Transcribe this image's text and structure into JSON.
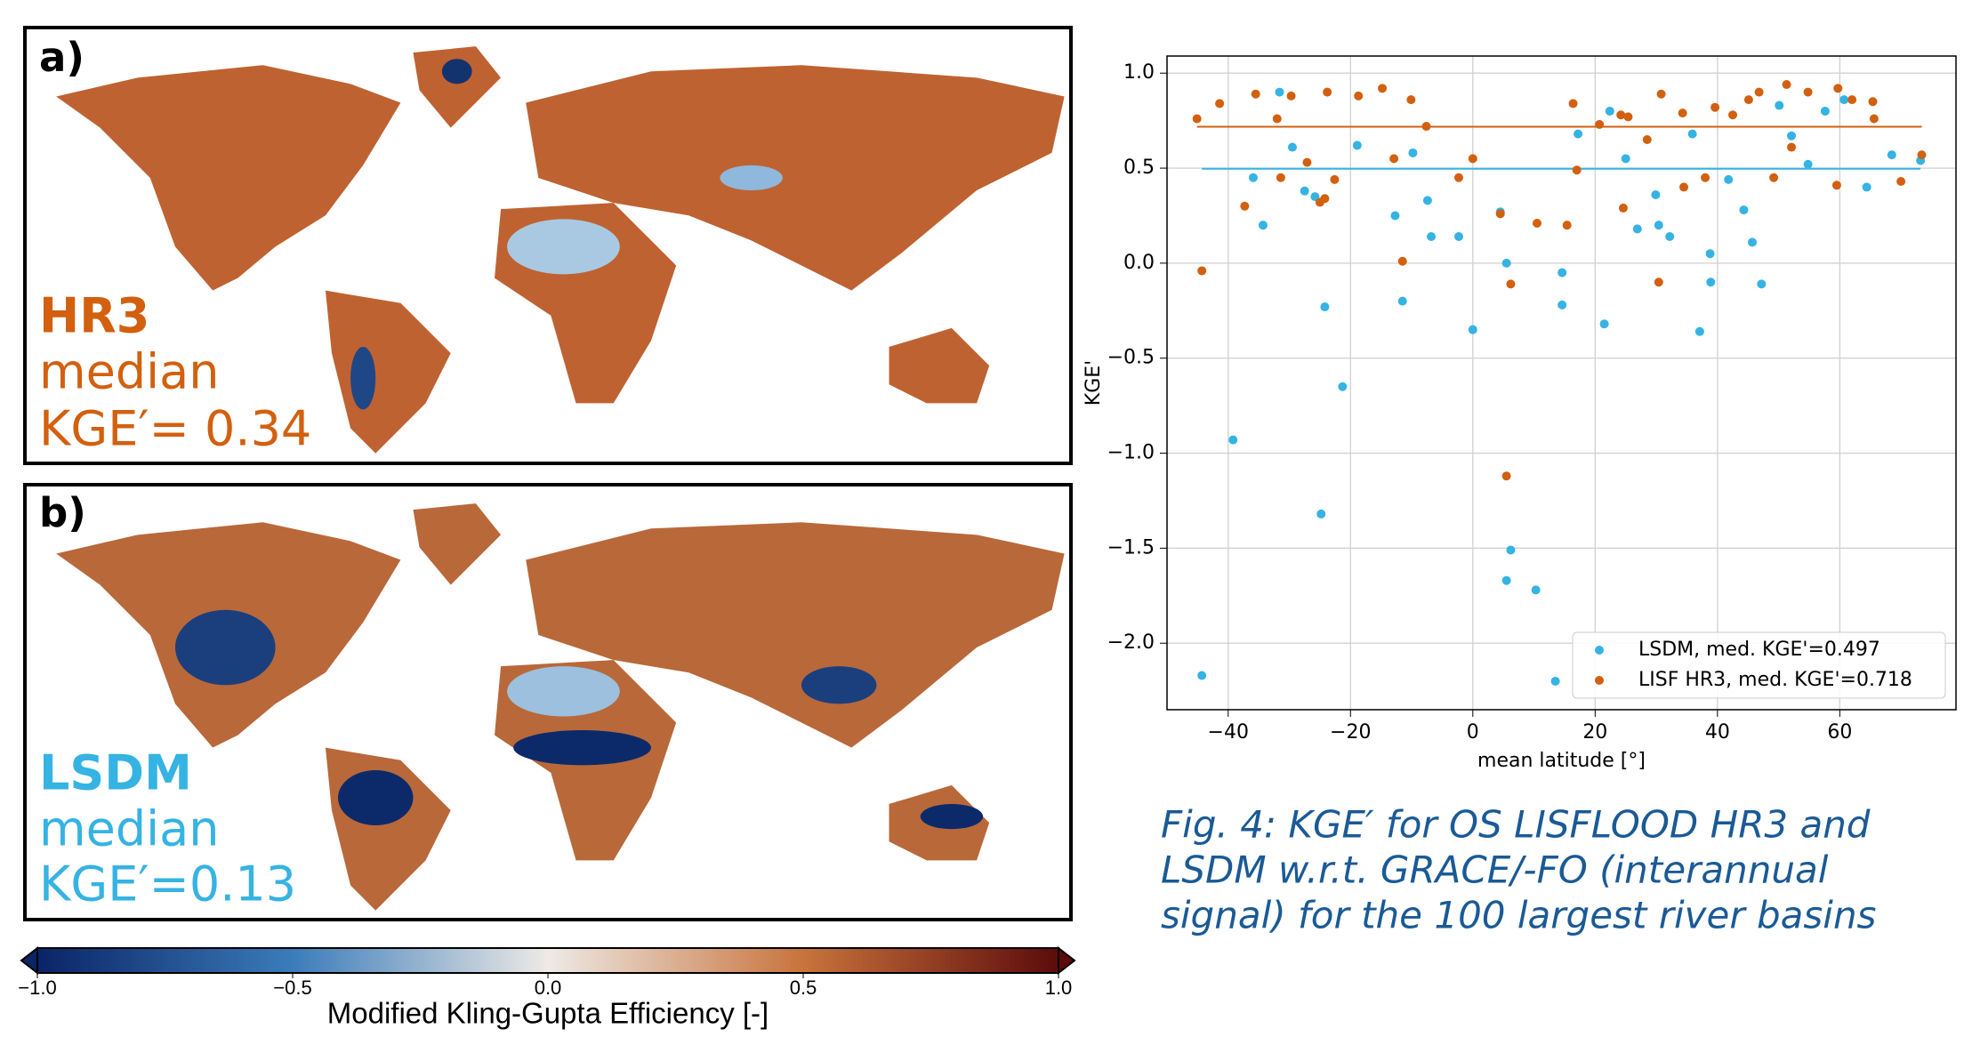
{
  "panels": [
    {
      "label": "a)",
      "model": "HR3",
      "median": "median",
      "kge": "KGE′= 0.34"
    },
    {
      "label": "b)",
      "model": "LSDM",
      "median": "median",
      "kge": "KGE′=0.13"
    }
  ],
  "caption": [
    "Fig. 4: KGE′ for OS LISFLOOD HR3 and",
    "LSDM w.r.t. GRACE/-FO (interannual",
    "signal) for the 100 largest river basins"
  ],
  "chart_data": [
    {
      "type": "scatter",
      "xlabel": "mean latitude [°]",
      "ylabel": "KGE'",
      "grid": true,
      "legend": "lower right",
      "xlim": [
        -50,
        79
      ],
      "ylim": [
        -2.35,
        1.09
      ],
      "xticks": [
        {
          "value": -40,
          "label": "−40"
        },
        {
          "value": -20,
          "label": "−20"
        },
        0,
        20,
        40,
        60
      ],
      "yticks": [
        {
          "value": -2.0,
          "label": "−2.0"
        },
        {
          "value": -1.5,
          "label": "−1.5"
        },
        {
          "value": -1.0,
          "label": "−1.0"
        },
        {
          "value": -0.5,
          "label": "−0.5"
        },
        {
          "value": 0.0,
          "label": "0.0"
        },
        0.5,
        {
          "value": 1.0,
          "label": "1.0"
        }
      ],
      "series": [
        {
          "name": "LSDM, med. KGE'=0.497",
          "color": "#35b3e3",
          "median": 0.497,
          "x": [
            -44.3,
            -39.2,
            -31.6,
            -35.9,
            -34.3,
            -29.5,
            -27.5,
            -25.8,
            -24.2,
            -24.8,
            -21.3,
            -18.9,
            -12.7,
            -11.5,
            -9.8,
            -7.4,
            -6.8,
            -2.3,
            0,
            4.5,
            5.5,
            6.2,
            5.5,
            10.3,
            13.5,
            14.6,
            14.6,
            17.2,
            21.5,
            22.4,
            25.0,
            26.9,
            29.9,
            30.4,
            32.2,
            35.9,
            37.1,
            38.8,
            38.9,
            41.8,
            44.3,
            45.7,
            47.2,
            50.1,
            52.1,
            54.8,
            57.6,
            60.7,
            64.4,
            68.5,
            73.2
          ],
          "values": [
            -2.17,
            -0.93,
            0.9,
            0.45,
            0.2,
            0.61,
            0.38,
            0.35,
            -0.23,
            -1.32,
            -0.65,
            0.62,
            0.25,
            -0.2,
            0.58,
            0.33,
            0.14,
            0.14,
            -0.35,
            0.27,
            0.0,
            -1.51,
            -1.67,
            -1.72,
            -2.2,
            -0.05,
            -0.22,
            0.68,
            -0.32,
            0.8,
            0.55,
            0.18,
            0.36,
            0.2,
            0.14,
            0.68,
            -0.36,
            0.05,
            -0.1,
            0.44,
            0.28,
            0.11,
            -0.11,
            0.83,
            0.67,
            0.52,
            0.8,
            0.86,
            0.4,
            0.57,
            0.54
          ]
        },
        {
          "name": "LISF HR3, med. KGE'=0.718",
          "color": "#d2600f",
          "median": 0.718,
          "x": [
            -44.3,
            -45.1,
            -41.4,
            -37.3,
            -35.5,
            -32.0,
            -31.4,
            -29.7,
            -27.1,
            -25.0,
            -24.2,
            -23.8,
            -22.6,
            -18.7,
            -14.8,
            -12.9,
            -11.5,
            -10.1,
            -7.6,
            -2.3,
            0,
            4.5,
            5.5,
            6.2,
            10.5,
            15.4,
            16.4,
            17.0,
            20.7,
            24.2,
            24.6,
            25.4,
            28.5,
            30.4,
            30.8,
            34.3,
            34.5,
            38.0,
            39.6,
            42.5,
            45.1,
            46.8,
            49.2,
            51.3,
            52.1,
            54.8,
            59.5,
            59.7,
            62.0,
            65.4,
            65.6,
            70.0,
            73.4
          ],
          "values": [
            -0.04,
            0.76,
            0.84,
            0.3,
            0.89,
            0.76,
            0.45,
            0.88,
            0.53,
            0.32,
            0.34,
            0.9,
            0.44,
            0.88,
            0.92,
            0.55,
            0.01,
            0.86,
            0.72,
            0.45,
            0.55,
            0.26,
            -1.12,
            -0.11,
            0.21,
            0.2,
            0.84,
            0.49,
            0.73,
            0.78,
            0.29,
            0.77,
            0.65,
            -0.1,
            0.89,
            0.79,
            0.4,
            0.45,
            0.82,
            0.78,
            0.86,
            0.9,
            0.45,
            0.94,
            0.61,
            0.9,
            0.41,
            0.92,
            0.86,
            0.85,
            0.76,
            0.43,
            0.57
          ]
        }
      ]
    },
    {
      "type": "colorbar",
      "xlabel": "Modified Kling-Gupta Efficiency [-]",
      "xlim": [
        -1,
        1
      ],
      "xticks": [
        {
          "value": -1.0,
          "label": "−1.0"
        },
        {
          "value": -0.5,
          "label": "−0.5"
        },
        {
          "value": 0.0,
          "label": "0.0"
        },
        0.5,
        {
          "value": 1.0,
          "label": "1.0"
        }
      ],
      "colormap": [
        "#0a2466",
        "#3b7cba",
        "#eeeae6",
        "#c8733c",
        "#5c0b0b"
      ]
    }
  ]
}
